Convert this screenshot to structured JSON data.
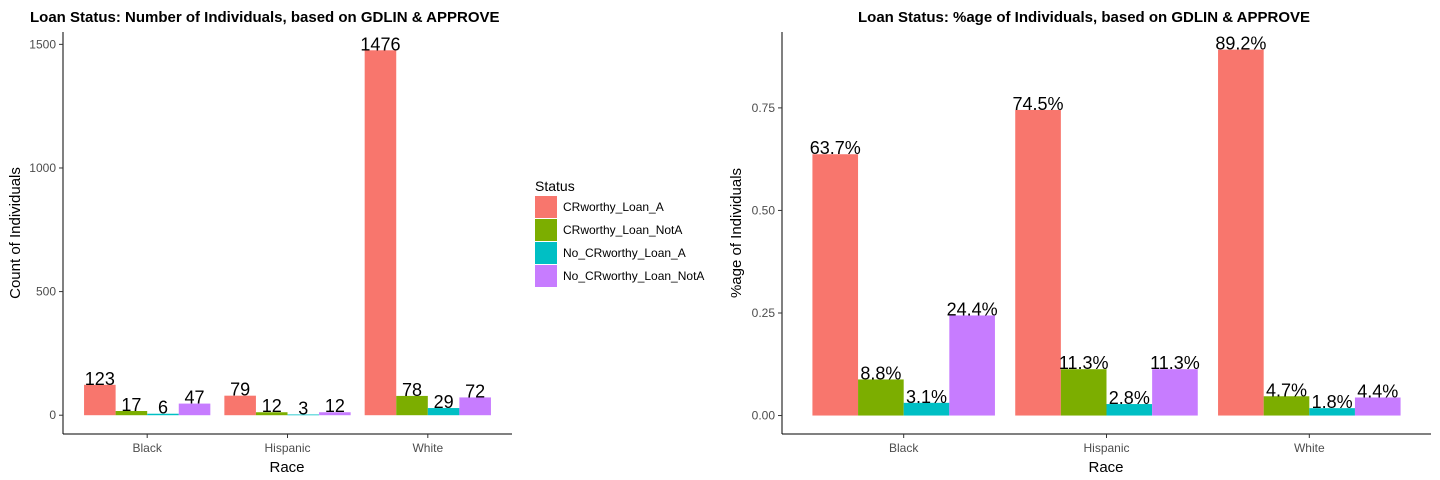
{
  "legend": {
    "title": "Status",
    "entries": [
      {
        "name": "CRworthy_Loan_A",
        "color": "#F8766D"
      },
      {
        "name": "CRworthy_Loan_NotA",
        "color": "#7CAE00"
      },
      {
        "name": "No_CRworthy_Loan_A",
        "color": "#00BFC4"
      },
      {
        "name": "No_CRworthy_Loan_NotA",
        "color": "#C77CFF"
      }
    ],
    "placement": "between-panels-right"
  },
  "chart_data": [
    {
      "type": "bar",
      "title": "Loan Status: Number of Individuals, based on GDLIN & APPROVE",
      "xlabel": "Race",
      "ylabel": "Count of Individuals",
      "categories": [
        "Black",
        "Hispanic",
        "White"
      ],
      "ylim": [
        -76,
        1550
      ],
      "yticks": [
        0,
        500,
        1000,
        1500
      ],
      "ytick_labels": [
        "0",
        "500",
        "1000",
        "1500"
      ],
      "grid": false,
      "series": [
        {
          "name": "CRworthy_Loan_A",
          "values": [
            123,
            79,
            1476
          ],
          "labels": [
            "123",
            "79",
            "1476"
          ]
        },
        {
          "name": "CRworthy_Loan_NotA",
          "values": [
            17,
            12,
            78
          ],
          "labels": [
            "17",
            "12",
            "78"
          ]
        },
        {
          "name": "No_CRworthy_Loan_A",
          "values": [
            6,
            3,
            29
          ],
          "labels": [
            "6",
            "3",
            "29"
          ]
        },
        {
          "name": "No_CRworthy_Loan_NotA",
          "values": [
            47,
            12,
            72
          ],
          "labels": [
            "47",
            "12",
            "72"
          ]
        }
      ]
    },
    {
      "type": "bar",
      "title": "Loan Status: %age of Individuals, based on GDLIN & APPROVE",
      "xlabel": "Race",
      "ylabel": "%age of Individuals",
      "categories": [
        "Black",
        "Hispanic",
        "White"
      ],
      "ylim": [
        -0.045,
        0.935
      ],
      "yticks": [
        0,
        0.25,
        0.5,
        0.75
      ],
      "ytick_labels": [
        "0.00",
        "0.25",
        "0.50",
        "0.75"
      ],
      "grid": false,
      "series": [
        {
          "name": "CRworthy_Loan_A",
          "values": [
            0.637,
            0.745,
            0.892
          ],
          "labels": [
            "63.7%",
            "74.5%",
            "89.2%"
          ]
        },
        {
          "name": "CRworthy_Loan_NotA",
          "values": [
            0.088,
            0.113,
            0.047
          ],
          "labels": [
            "8.8%",
            "11.3%",
            "4.7%"
          ]
        },
        {
          "name": "No_CRworthy_Loan_A",
          "values": [
            0.031,
            0.028,
            0.018
          ],
          "labels": [
            "3.1%",
            "2.8%",
            "1.8%"
          ]
        },
        {
          "name": "No_CRworthy_Loan_NotA",
          "values": [
            0.244,
            0.113,
            0.044
          ],
          "labels": [
            "24.4%",
            "11.3%",
            "4.4%"
          ]
        }
      ]
    }
  ]
}
